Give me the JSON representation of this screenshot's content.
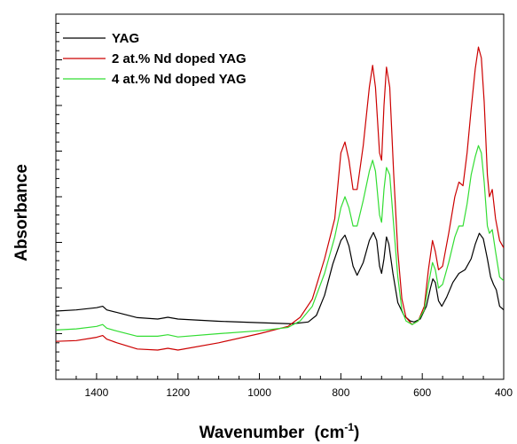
{
  "chart_data": {
    "type": "line",
    "title": "",
    "xlabel": "Wavenumber",
    "xlabel_unit": "(cm",
    "xlabel_sup": "-1",
    "xlabel_close": ")",
    "ylabel": "Absorbance",
    "xlim": [
      1500,
      400
    ],
    "x_reversed": true,
    "ylim": [
      0,
      1
    ],
    "y_tick_labels_shown": false,
    "x_ticks": [
      1400,
      1200,
      1000,
      800,
      600,
      400
    ],
    "x_tick_labels": [
      "1400",
      "1200",
      "1000",
      "800",
      "600",
      "400"
    ],
    "grid": false,
    "legend_position": "top-left",
    "series": [
      {
        "name": "YAG",
        "color": "#000000",
        "points": [
          [
            1500,
            0.187
          ],
          [
            1450,
            0.19
          ],
          [
            1400,
            0.196
          ],
          [
            1385,
            0.2
          ],
          [
            1375,
            0.19
          ],
          [
            1350,
            0.183
          ],
          [
            1300,
            0.169
          ],
          [
            1250,
            0.165
          ],
          [
            1225,
            0.17
          ],
          [
            1200,
            0.165
          ],
          [
            1100,
            0.159
          ],
          [
            1000,
            0.155
          ],
          [
            920,
            0.152
          ],
          [
            880,
            0.157
          ],
          [
            860,
            0.175
          ],
          [
            840,
            0.23
          ],
          [
            820,
            0.315
          ],
          [
            800,
            0.38
          ],
          [
            790,
            0.395
          ],
          [
            780,
            0.365
          ],
          [
            770,
            0.31
          ],
          [
            760,
            0.285
          ],
          [
            745,
            0.32
          ],
          [
            730,
            0.38
          ],
          [
            720,
            0.402
          ],
          [
            712,
            0.38
          ],
          [
            705,
            0.31
          ],
          [
            700,
            0.29
          ],
          [
            694,
            0.33
          ],
          [
            688,
            0.39
          ],
          [
            682,
            0.37
          ],
          [
            672,
            0.29
          ],
          [
            660,
            0.21
          ],
          [
            645,
            0.175
          ],
          [
            630,
            0.16
          ],
          [
            620,
            0.157
          ],
          [
            605,
            0.165
          ],
          [
            590,
            0.2
          ],
          [
            580,
            0.25
          ],
          [
            574,
            0.275
          ],
          [
            568,
            0.265
          ],
          [
            560,
            0.215
          ],
          [
            552,
            0.2
          ],
          [
            540,
            0.225
          ],
          [
            525,
            0.265
          ],
          [
            510,
            0.29
          ],
          [
            495,
            0.3
          ],
          [
            480,
            0.33
          ],
          [
            470,
            0.37
          ],
          [
            460,
            0.4
          ],
          [
            450,
            0.385
          ],
          [
            440,
            0.33
          ],
          [
            432,
            0.28
          ],
          [
            425,
            0.26
          ],
          [
            418,
            0.245
          ],
          [
            410,
            0.2
          ],
          [
            400,
            0.19
          ]
        ]
      },
      {
        "name": "2 at.% Nd doped YAG",
        "color": "#cc0000",
        "points": [
          [
            1500,
            0.104
          ],
          [
            1450,
            0.106
          ],
          [
            1400,
            0.115
          ],
          [
            1385,
            0.12
          ],
          [
            1375,
            0.11
          ],
          [
            1350,
            0.1
          ],
          [
            1300,
            0.083
          ],
          [
            1250,
            0.08
          ],
          [
            1225,
            0.085
          ],
          [
            1200,
            0.08
          ],
          [
            1100,
            0.1
          ],
          [
            1000,
            0.125
          ],
          [
            930,
            0.145
          ],
          [
            900,
            0.17
          ],
          [
            870,
            0.22
          ],
          [
            840,
            0.33
          ],
          [
            815,
            0.44
          ],
          [
            800,
            0.62
          ],
          [
            790,
            0.65
          ],
          [
            780,
            0.6
          ],
          [
            770,
            0.52
          ],
          [
            760,
            0.52
          ],
          [
            745,
            0.64
          ],
          [
            730,
            0.8
          ],
          [
            722,
            0.86
          ],
          [
            715,
            0.8
          ],
          [
            705,
            0.62
          ],
          [
            700,
            0.6
          ],
          [
            694,
            0.75
          ],
          [
            688,
            0.855
          ],
          [
            680,
            0.8
          ],
          [
            670,
            0.56
          ],
          [
            660,
            0.35
          ],
          [
            650,
            0.22
          ],
          [
            640,
            0.17
          ],
          [
            625,
            0.15
          ],
          [
            610,
            0.16
          ],
          [
            595,
            0.2
          ],
          [
            585,
            0.3
          ],
          [
            575,
            0.38
          ],
          [
            568,
            0.35
          ],
          [
            560,
            0.3
          ],
          [
            550,
            0.31
          ],
          [
            535,
            0.4
          ],
          [
            520,
            0.5
          ],
          [
            510,
            0.54
          ],
          [
            500,
            0.53
          ],
          [
            490,
            0.62
          ],
          [
            480,
            0.74
          ],
          [
            470,
            0.85
          ],
          [
            462,
            0.91
          ],
          [
            455,
            0.88
          ],
          [
            448,
            0.76
          ],
          [
            440,
            0.56
          ],
          [
            435,
            0.5
          ],
          [
            428,
            0.52
          ],
          [
            420,
            0.44
          ],
          [
            410,
            0.38
          ],
          [
            400,
            0.36
          ]
        ]
      },
      {
        "name": "4 at.% Nd doped YAG",
        "color": "#33dd33",
        "points": [
          [
            1500,
            0.135
          ],
          [
            1450,
            0.138
          ],
          [
            1400,
            0.145
          ],
          [
            1385,
            0.15
          ],
          [
            1375,
            0.14
          ],
          [
            1350,
            0.132
          ],
          [
            1300,
            0.118
          ],
          [
            1250,
            0.118
          ],
          [
            1225,
            0.122
          ],
          [
            1200,
            0.116
          ],
          [
            1100,
            0.125
          ],
          [
            1000,
            0.133
          ],
          [
            930,
            0.142
          ],
          [
            900,
            0.16
          ],
          [
            870,
            0.2
          ],
          [
            840,
            0.29
          ],
          [
            815,
            0.39
          ],
          [
            800,
            0.47
          ],
          [
            790,
            0.5
          ],
          [
            780,
            0.47
          ],
          [
            770,
            0.42
          ],
          [
            760,
            0.42
          ],
          [
            745,
            0.49
          ],
          [
            730,
            0.57
          ],
          [
            722,
            0.6
          ],
          [
            715,
            0.57
          ],
          [
            705,
            0.45
          ],
          [
            700,
            0.43
          ],
          [
            694,
            0.52
          ],
          [
            688,
            0.58
          ],
          [
            680,
            0.56
          ],
          [
            670,
            0.42
          ],
          [
            660,
            0.28
          ],
          [
            650,
            0.19
          ],
          [
            640,
            0.16
          ],
          [
            625,
            0.15
          ],
          [
            610,
            0.16
          ],
          [
            595,
            0.19
          ],
          [
            585,
            0.26
          ],
          [
            575,
            0.32
          ],
          [
            568,
            0.3
          ],
          [
            560,
            0.25
          ],
          [
            550,
            0.26
          ],
          [
            535,
            0.32
          ],
          [
            520,
            0.39
          ],
          [
            510,
            0.42
          ],
          [
            500,
            0.42
          ],
          [
            490,
            0.48
          ],
          [
            480,
            0.56
          ],
          [
            470,
            0.61
          ],
          [
            462,
            0.64
          ],
          [
            455,
            0.62
          ],
          [
            448,
            0.54
          ],
          [
            440,
            0.42
          ],
          [
            435,
            0.4
          ],
          [
            428,
            0.41
          ],
          [
            420,
            0.35
          ],
          [
            410,
            0.28
          ],
          [
            400,
            0.27
          ]
        ]
      }
    ]
  }
}
